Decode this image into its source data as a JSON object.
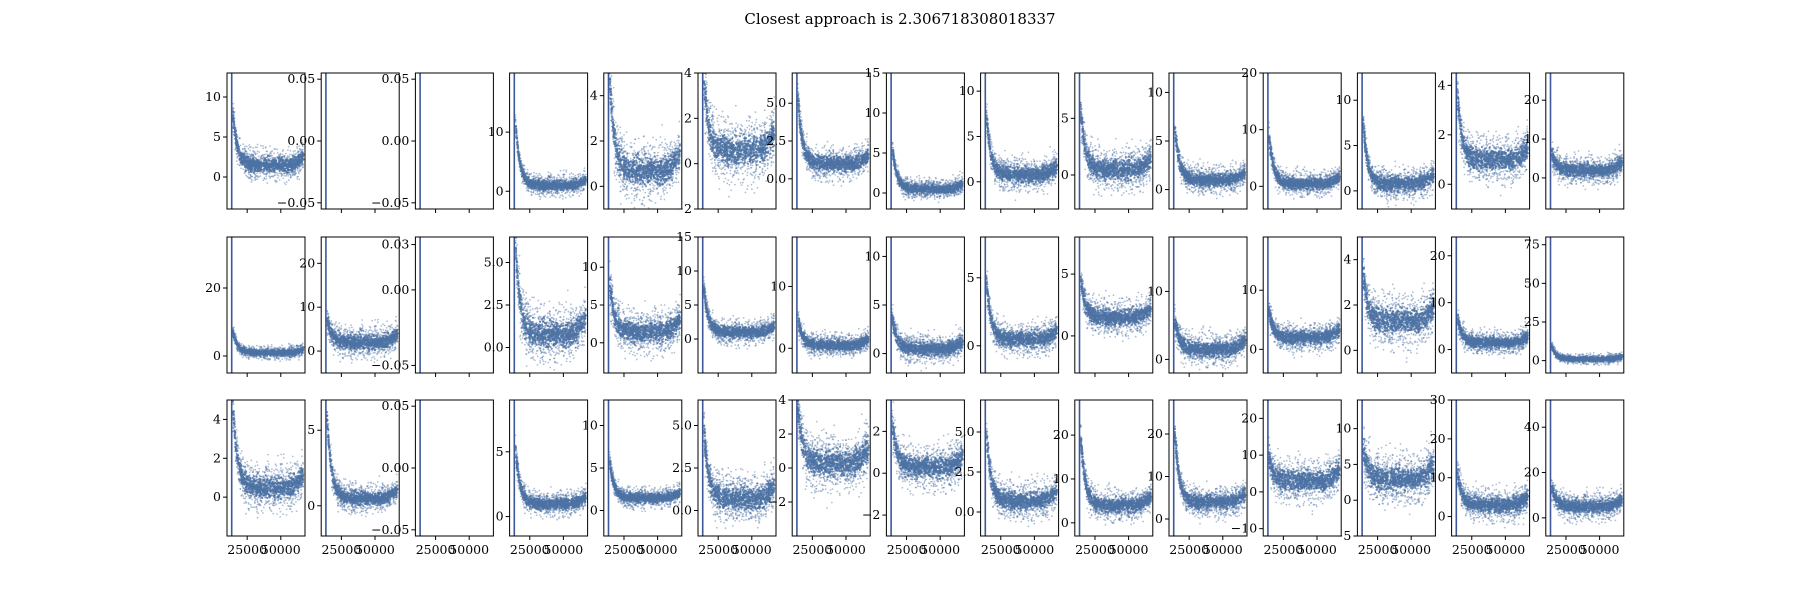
{
  "figure": {
    "title": "Closest approach is 2.306718308018337",
    "colors": {
      "series": "#4c72a4",
      "marker_line": "#3b5998",
      "frame": "#000000"
    }
  },
  "chart_data": {
    "type": "scatter",
    "title": "Closest approach is 2.306718308018337",
    "layout": {
      "rows": 3,
      "cols": 15
    },
    "xlim": [
      10000,
      68000
    ],
    "x_ticks": [
      25000,
      50000
    ],
    "x_tick_labels": [
      "25000",
      "50000"
    ],
    "vertical_marker_x": 13500,
    "panels": [
      {
        "row": 0,
        "col": 0,
        "ylim": [
          -4,
          13
        ],
        "yticks": [
          0,
          5,
          10
        ],
        "ytick_labels": [
          "0",
          "5",
          "10"
        ],
        "base": 1.5,
        "spread": 1.6,
        "spike": 6
      },
      {
        "row": 0,
        "col": 1,
        "ylim": [
          -0.055,
          0.055
        ],
        "yticks": [
          -0.05,
          0,
          0.05
        ],
        "ytick_labels": [
          "−0.05",
          "0.00",
          "0.05"
        ],
        "empty": true
      },
      {
        "row": 0,
        "col": 2,
        "ylim": [
          -0.055,
          0.055
        ],
        "yticks": [
          -0.05,
          0,
          0.05
        ],
        "ytick_labels": [
          "−0.05",
          "0.00",
          "0.05"
        ],
        "empty": true
      },
      {
        "row": 0,
        "col": 3,
        "ylim": [
          -3,
          20
        ],
        "yticks": [
          0,
          10
        ],
        "ytick_labels": [
          "0",
          "10"
        ],
        "base": 1,
        "spread": 1.5,
        "spike": 10
      },
      {
        "row": 0,
        "col": 4,
        "ylim": [
          -1,
          5
        ],
        "yticks": [
          0,
          2,
          4
        ],
        "ytick_labels": [
          "0",
          "2",
          "4"
        ],
        "base": 0.7,
        "spread": 1.1,
        "spike": 4
      },
      {
        "row": 0,
        "col": 5,
        "ylim": [
          -2,
          4
        ],
        "yticks": [
          -2,
          0,
          2,
          4
        ],
        "ytick_labels": [
          "−2",
          "0",
          "2",
          "4"
        ],
        "base": 0.6,
        "spread": 1.2,
        "spike": 3
      },
      {
        "row": 0,
        "col": 6,
        "ylim": [
          -2,
          7
        ],
        "yticks": [
          0,
          2.5,
          5
        ],
        "ytick_labels": [
          "0.0",
          "2.5",
          "5.0"
        ],
        "base": 1.0,
        "spread": 0.9,
        "spike": 4
      },
      {
        "row": 0,
        "col": 7,
        "ylim": [
          -2,
          15
        ],
        "yticks": [
          0,
          5,
          10,
          15
        ],
        "ytick_labels": [
          "0",
          "5",
          "10",
          "15"
        ],
        "base": 0.5,
        "spread": 1.0,
        "spike": 5
      },
      {
        "row": 0,
        "col": 8,
        "ylim": [
          -3,
          12
        ],
        "yticks": [
          0,
          5,
          10
        ],
        "ytick_labels": [
          "0",
          "5",
          "10"
        ],
        "base": 0.8,
        "spread": 1.5,
        "spike": 6
      },
      {
        "row": 0,
        "col": 9,
        "ylim": [
          -3,
          9
        ],
        "yticks": [
          0,
          5
        ],
        "ytick_labels": [
          "0",
          "5"
        ],
        "base": 0.5,
        "spread": 1.6,
        "spike": 5
      },
      {
        "row": 0,
        "col": 10,
        "ylim": [
          -2,
          12
        ],
        "yticks": [
          0,
          5,
          10
        ],
        "ytick_labels": [
          "0",
          "5",
          "10"
        ],
        "base": 1.0,
        "spread": 1.2,
        "spike": 5
      },
      {
        "row": 0,
        "col": 11,
        "ylim": [
          -4,
          20
        ],
        "yticks": [
          0,
          10,
          20
        ],
        "ytick_labels": [
          "0",
          "10",
          "20"
        ],
        "base": 0.5,
        "spread": 1.8,
        "spike": 8
      },
      {
        "row": 0,
        "col": 12,
        "ylim": [
          -2,
          13
        ],
        "yticks": [
          0,
          5,
          10
        ],
        "ytick_labels": [
          "0",
          "5",
          "10"
        ],
        "base": 0.8,
        "spread": 1.5,
        "spike": 6
      },
      {
        "row": 0,
        "col": 13,
        "ylim": [
          -1,
          4.5
        ],
        "yticks": [
          0,
          2,
          4
        ],
        "ytick_labels": [
          "0",
          "2",
          "4"
        ],
        "base": 1.0,
        "spread": 0.8,
        "spike": 2.5
      },
      {
        "row": 0,
        "col": 14,
        "ylim": [
          -8,
          27
        ],
        "yticks": [
          0,
          10,
          20
        ],
        "ytick_labels": [
          "0",
          "10",
          "20"
        ],
        "base": 2,
        "spread": 3,
        "spike": 4
      },
      {
        "row": 1,
        "col": 0,
        "ylim": [
          -5,
          35
        ],
        "yticks": [
          0,
          20
        ],
        "ytick_labels": [
          "0",
          "20"
        ],
        "base": 1,
        "spread": 1.5,
        "spike": 6
      },
      {
        "row": 1,
        "col": 1,
        "ylim": [
          -5,
          26
        ],
        "yticks": [
          0,
          10,
          20
        ],
        "ytick_labels": [
          "0",
          "10",
          "20"
        ],
        "base": 2,
        "spread": 3,
        "spike": 5
      },
      {
        "row": 1,
        "col": 2,
        "ylim": [
          -0.055,
          0.035
        ],
        "yticks": [
          -0.05,
          0,
          0.03
        ],
        "ytick_labels": [
          "−0.05",
          "0.00",
          "0.03"
        ],
        "empty": true
      },
      {
        "row": 1,
        "col": 3,
        "ylim": [
          -1.5,
          6.5
        ],
        "yticks": [
          0,
          2.5,
          5
        ],
        "ytick_labels": [
          "0.0",
          "2.5",
          "5.0"
        ],
        "base": 0.8,
        "spread": 1.4,
        "spike": 5
      },
      {
        "row": 1,
        "col": 4,
        "ylim": [
          -4,
          14
        ],
        "yticks": [
          0,
          5,
          10
        ],
        "ytick_labels": [
          "0",
          "5",
          "10"
        ],
        "base": 1.5,
        "spread": 2.5,
        "spike": 6
      },
      {
        "row": 1,
        "col": 5,
        "ylim": [
          -5,
          15
        ],
        "yticks": [
          0,
          5,
          10,
          15
        ],
        "ytick_labels": [
          "0",
          "5",
          "10",
          "15"
        ],
        "base": 1,
        "spread": 1.5,
        "spike": 6
      },
      {
        "row": 1,
        "col": 6,
        "ylim": [
          -4,
          18
        ],
        "yticks": [
          0,
          10
        ],
        "ytick_labels": [
          "0",
          "10"
        ],
        "base": 0.5,
        "spread": 1.5,
        "spike": 4
      },
      {
        "row": 1,
        "col": 7,
        "ylim": [
          -2,
          12
        ],
        "yticks": [
          0,
          5,
          10
        ],
        "ytick_labels": [
          "0",
          "5",
          "10"
        ],
        "base": 0.5,
        "spread": 1.2,
        "spike": 3
      },
      {
        "row": 1,
        "col": 8,
        "ylim": [
          -2,
          8
        ],
        "yticks": [
          0,
          5
        ],
        "ytick_labels": [
          "0",
          "5"
        ],
        "base": 0.5,
        "spread": 1.0,
        "spike": 4
      },
      {
        "row": 1,
        "col": 9,
        "ylim": [
          -3,
          8
        ],
        "yticks": [
          0,
          5
        ],
        "ytick_labels": [
          "0",
          "5"
        ],
        "base": 1.5,
        "spread": 1.2,
        "spike": 3
      },
      {
        "row": 1,
        "col": 10,
        "ylim": [
          -2,
          18
        ],
        "yticks": [
          0,
          10
        ],
        "ytick_labels": [
          "0",
          "10"
        ],
        "base": 1.5,
        "spread": 2.0,
        "spike": 4
      },
      {
        "row": 1,
        "col": 11,
        "ylim": [
          -4,
          19
        ],
        "yticks": [
          0,
          10
        ],
        "ytick_labels": [
          "0",
          "10"
        ],
        "base": 2,
        "spread": 2.0,
        "spike": 4
      },
      {
        "row": 1,
        "col": 12,
        "ylim": [
          -1,
          5
        ],
        "yticks": [
          0,
          2,
          4
        ],
        "ytick_labels": [
          "0",
          "2",
          "4"
        ],
        "base": 1.3,
        "spread": 1.0,
        "spike": 2
      },
      {
        "row": 1,
        "col": 13,
        "ylim": [
          -5,
          24
        ],
        "yticks": [
          0,
          10,
          20
        ],
        "ytick_labels": [
          "0",
          "10",
          "20"
        ],
        "base": 1.5,
        "spread": 2.0,
        "spike": 5
      },
      {
        "row": 1,
        "col": 14,
        "ylim": [
          -8,
          80
        ],
        "yticks": [
          0,
          25,
          50,
          75
        ],
        "ytick_labels": [
          "0",
          "25",
          "50",
          "75"
        ],
        "base": 1,
        "spread": 2.5,
        "spike": 8
      },
      {
        "row": 2,
        "col": 0,
        "ylim": [
          -2,
          5
        ],
        "yticks": [
          0,
          2,
          4
        ],
        "ytick_labels": [
          "0",
          "2",
          "4"
        ],
        "base": 0.5,
        "spread": 1.0,
        "spike": 4
      },
      {
        "row": 2,
        "col": 1,
        "ylim": [
          -2,
          7
        ],
        "yticks": [
          0,
          5
        ],
        "ytick_labels": [
          "0",
          "5"
        ],
        "base": 0.5,
        "spread": 0.8,
        "spike": 5
      },
      {
        "row": 2,
        "col": 2,
        "ylim": [
          -0.055,
          0.055
        ],
        "yticks": [
          -0.05,
          0,
          0.05
        ],
        "ytick_labels": [
          "−0.05",
          "0.00",
          "0.05"
        ],
        "empty": true
      },
      {
        "row": 2,
        "col": 3,
        "ylim": [
          -1.5,
          9
        ],
        "yticks": [
          0,
          5
        ],
        "ytick_labels": [
          "0",
          "5"
        ],
        "base": 1,
        "spread": 0.8,
        "spike": 4
      },
      {
        "row": 2,
        "col": 4,
        "ylim": [
          -3,
          13
        ],
        "yticks": [
          0,
          5,
          10
        ],
        "ytick_labels": [
          "0",
          "5",
          "10"
        ],
        "base": 1.5,
        "spread": 1.0,
        "spike": 4
      },
      {
        "row": 2,
        "col": 5,
        "ylim": [
          -1.5,
          6.5
        ],
        "yticks": [
          0,
          2.5,
          5
        ],
        "ytick_labels": [
          "0.0",
          "2.5",
          "5.0"
        ],
        "base": 0.7,
        "spread": 1.2,
        "spike": 4
      },
      {
        "row": 2,
        "col": 6,
        "ylim": [
          -4,
          4
        ],
        "yticks": [
          -2,
          0,
          2,
          4
        ],
        "ytick_labels": [
          "−2",
          "0",
          "2",
          "4"
        ],
        "base": 0.3,
        "spread": 1.4,
        "spike": 3
      },
      {
        "row": 2,
        "col": 7,
        "ylim": [
          -3,
          3.5
        ],
        "yticks": [
          -2,
          0,
          2
        ],
        "ytick_labels": [
          "−2",
          "0",
          "2"
        ],
        "base": 0.3,
        "spread": 0.9,
        "spike": 2
      },
      {
        "row": 2,
        "col": 8,
        "ylim": [
          -1.5,
          7
        ],
        "yticks": [
          0,
          2.5,
          5
        ],
        "ytick_labels": [
          "0.0",
          "2.5",
          "5.0"
        ],
        "base": 0.7,
        "spread": 1.0,
        "spike": 4
      },
      {
        "row": 2,
        "col": 9,
        "ylim": [
          -3,
          28
        ],
        "yticks": [
          0,
          10,
          20
        ],
        "ytick_labels": [
          "0",
          "10",
          "20"
        ],
        "base": 4,
        "spread": 3.0,
        "spike": 15
      },
      {
        "row": 2,
        "col": 10,
        "ylim": [
          -4,
          28
        ],
        "yticks": [
          0,
          10,
          20
        ],
        "ytick_labels": [
          "0",
          "10",
          "20"
        ],
        "base": 4,
        "spread": 3.0,
        "spike": 15
      },
      {
        "row": 2,
        "col": 11,
        "ylim": [
          -12,
          25
        ],
        "yticks": [
          -10,
          0,
          10,
          20
        ],
        "ytick_labels": [
          "−10",
          "0",
          "10",
          "20"
        ],
        "base": 3,
        "spread": 5.0,
        "spike": 6
      },
      {
        "row": 2,
        "col": 12,
        "ylim": [
          -5,
          14
        ],
        "yticks": [
          -5,
          0,
          5,
          10
        ],
        "ytick_labels": [
          "−5",
          "0",
          "5",
          "10"
        ],
        "base": 3,
        "spread": 3.0,
        "spike": 4
      },
      {
        "row": 2,
        "col": 13,
        "ylim": [
          -5,
          30
        ],
        "yticks": [
          0,
          10,
          20,
          30
        ],
        "ytick_labels": [
          "0",
          "10",
          "20",
          "30"
        ],
        "base": 3,
        "spread": 3.5,
        "spike": 8
      },
      {
        "row": 2,
        "col": 14,
        "ylim": [
          -8,
          52
        ],
        "yticks": [
          0,
          20,
          40
        ],
        "ytick_labels": [
          "0",
          "20",
          "40"
        ],
        "base": 5,
        "spread": 5.0,
        "spike": 8
      }
    ]
  }
}
